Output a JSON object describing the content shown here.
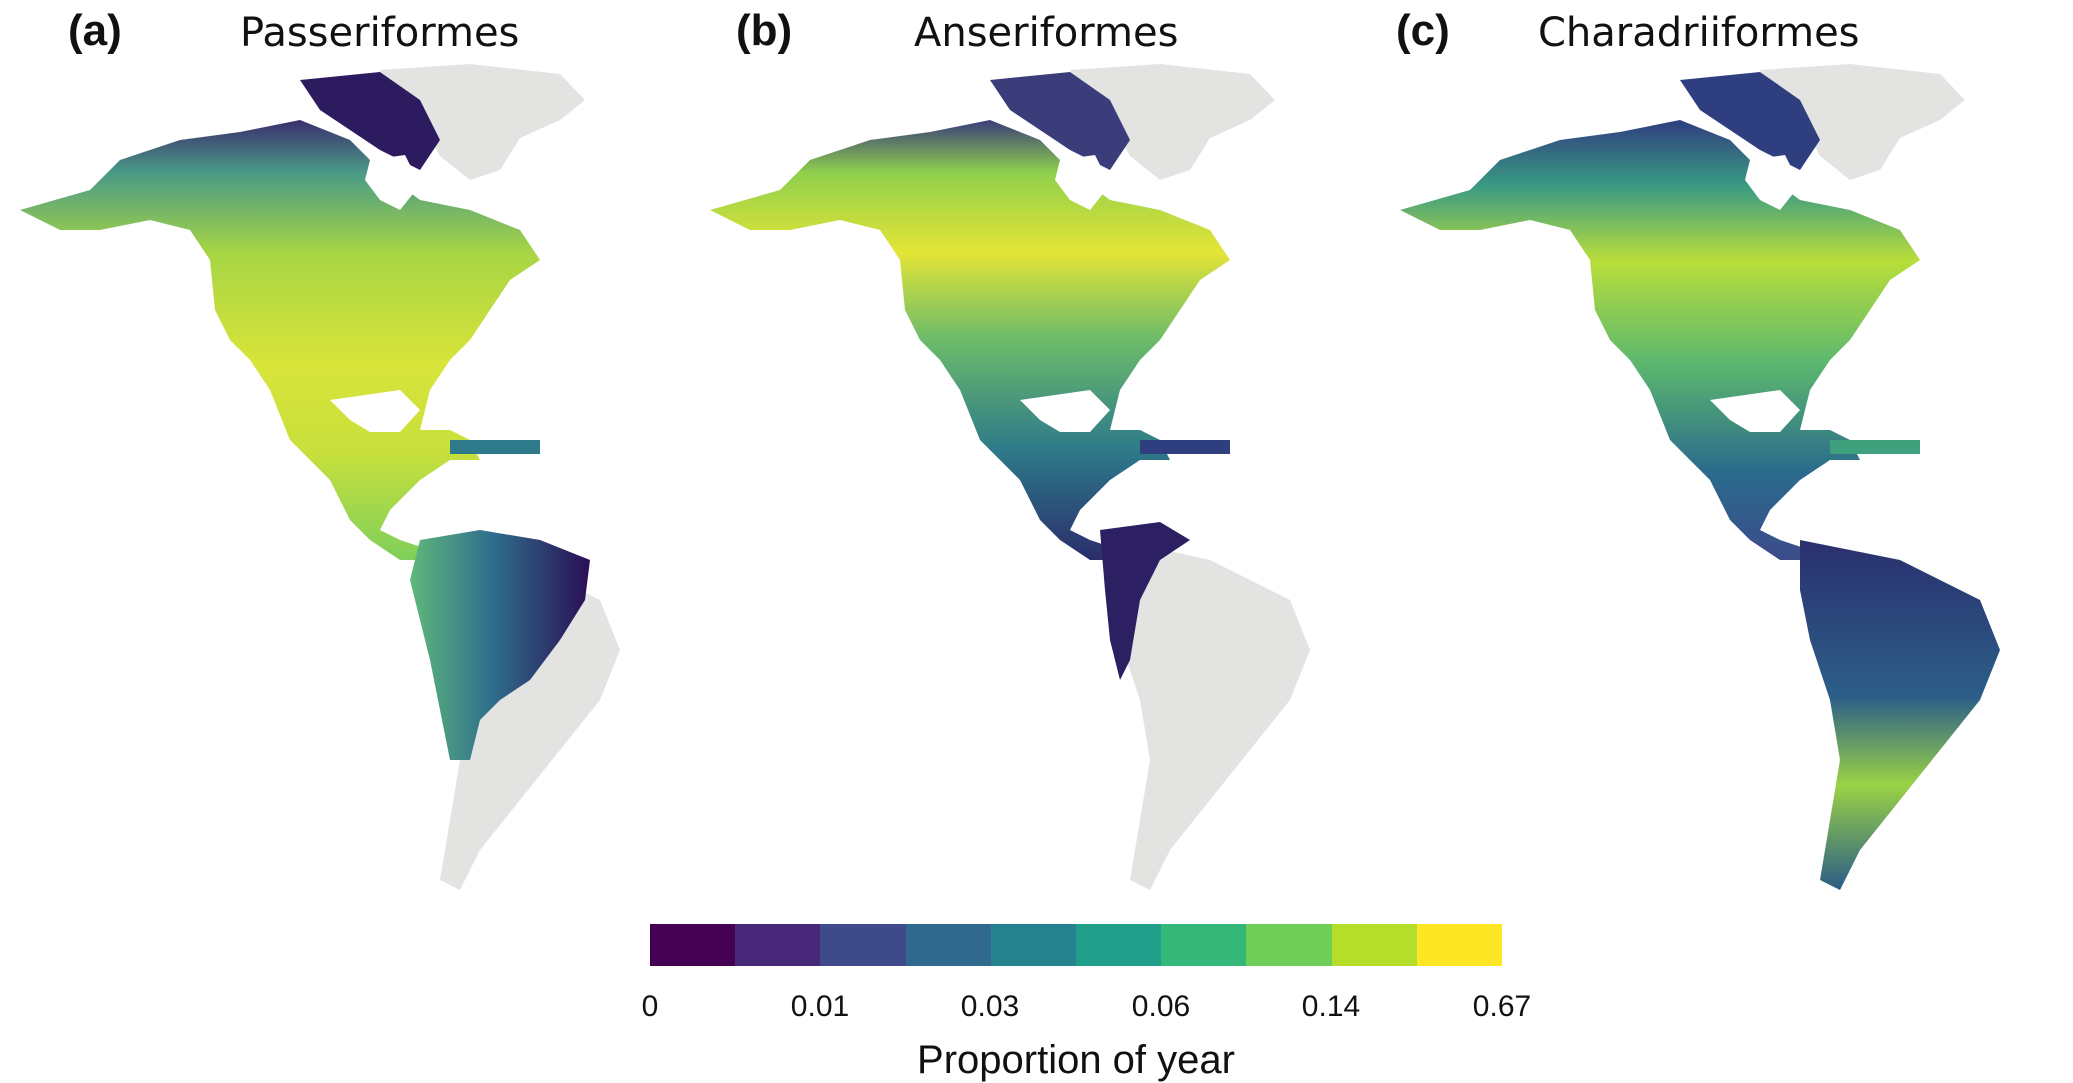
{
  "panels": [
    {
      "letter": "(a)",
      "title": "Passeriformes"
    },
    {
      "letter": "(b)",
      "title": "Anseriformes"
    },
    {
      "letter": "(c)",
      "title": "Charadriiformes"
    }
  ],
  "legend": {
    "title": "Proportion of year",
    "ticks": [
      "0",
      "0.01",
      "0.03",
      "0.06",
      "0.14",
      "0.67"
    ],
    "colors": [
      "#440154",
      "#482878",
      "#3e4a89",
      "#31688e",
      "#26828e",
      "#1f9e89",
      "#35b779",
      "#6ece58",
      "#b5de2b",
      "#fde725"
    ]
  },
  "colors": {
    "land_no_data": "#e3e3e1",
    "low": "#35105d",
    "mid": "#2c7c8c",
    "high": "#b5de2b",
    "max": "#f2e43a"
  }
}
